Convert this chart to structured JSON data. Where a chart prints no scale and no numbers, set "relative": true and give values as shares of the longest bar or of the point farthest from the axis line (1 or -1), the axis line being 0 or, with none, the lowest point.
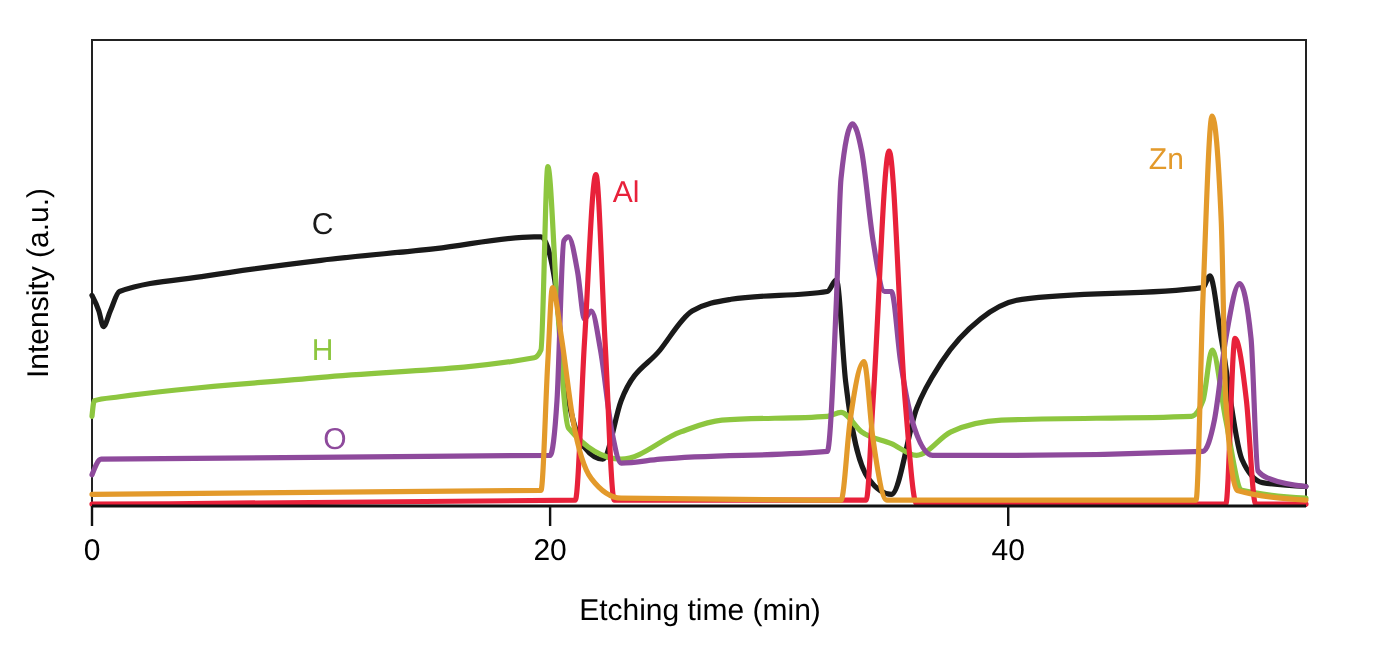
{
  "chart_data": {
    "type": "line",
    "relative": true,
    "xlabel": "Etching time (min)",
    "ylabel": "Intensity (a.u.)",
    "xlim": [
      0,
      53
    ],
    "xticks": [
      0,
      20,
      40
    ],
    "grid": false,
    "marker": "none",
    "line_style": "solid",
    "series": [
      {
        "name": "C",
        "color": "#1a1a1a",
        "x": [
          0,
          0.3,
          0.5,
          0.8,
          1.2,
          5,
          10,
          15,
          19.3,
          19.6,
          20.2,
          20.6,
          21.5,
          22.3,
          23.1,
          24.8,
          26.2,
          27.9,
          32.1,
          32.5,
          32.9,
          33.9,
          34.9,
          36,
          37.1,
          38.8,
          40.6,
          48.5,
          48.8,
          49.3,
          50.2,
          51.1,
          53
        ],
        "values": [
          0.54,
          0.5,
          0.46,
          0.5,
          0.55,
          0.59,
          0.63,
          0.66,
          0.69,
          0.69,
          0.58,
          0.35,
          0.15,
          0.12,
          0.27,
          0.4,
          0.5,
          0.53,
          0.55,
          0.58,
          0.32,
          0.07,
          0.03,
          0.25,
          0.37,
          0.48,
          0.53,
          0.56,
          0.59,
          0.43,
          0.12,
          0.06,
          0.05
        ]
      },
      {
        "name": "H",
        "color": "#8dc63f",
        "x": [
          0,
          0.1,
          1.2,
          10,
          19.3,
          19.6,
          19.9,
          20.3,
          20.8,
          23.1,
          25.7,
          27.5,
          32.1,
          32.7,
          33.6,
          34.9,
          36,
          37.5,
          39.7,
          48,
          48.5,
          48.9,
          49.5,
          50.2,
          53
        ],
        "values": [
          0.23,
          0.27,
          0.28,
          0.33,
          0.38,
          0.4,
          0.87,
          0.53,
          0.2,
          0.12,
          0.19,
          0.22,
          0.23,
          0.24,
          0.19,
          0.16,
          0.13,
          0.19,
          0.22,
          0.23,
          0.27,
          0.4,
          0.22,
          0.04,
          0.02
        ]
      },
      {
        "name": "O",
        "color": "#8e4a9c",
        "x": [
          0,
          0.4,
          20,
          20.3,
          20.6,
          20.8,
          21.2,
          21.5,
          21.8,
          22.2,
          22.7,
          23.1,
          24.8,
          32.1,
          32.5,
          32.7,
          33.2,
          33.6,
          34.1,
          34.6,
          34.9,
          35.3,
          35.8,
          36.7,
          40,
          48.5,
          49,
          49.5,
          50.1,
          50.6,
          50.9,
          51.4,
          53
        ],
        "values": [
          0.08,
          0.12,
          0.13,
          0.27,
          0.68,
          0.69,
          0.6,
          0.48,
          0.5,
          0.4,
          0.19,
          0.11,
          0.12,
          0.14,
          0.53,
          0.84,
          0.98,
          0.91,
          0.68,
          0.55,
          0.55,
          0.37,
          0.22,
          0.13,
          0.13,
          0.14,
          0.22,
          0.43,
          0.57,
          0.43,
          0.09,
          0.07,
          0.05
        ]
      },
      {
        "name": "Al",
        "color": "#e8213a",
        "x": [
          0,
          21.1,
          21.5,
          22,
          22.4,
          22.8,
          33.8,
          34.1,
          34.8,
          35.5,
          36,
          49.5,
          49.9,
          50.4,
          50.8,
          53
        ],
        "values": [
          0.005,
          0.015,
          0.42,
          0.85,
          0.42,
          0.015,
          0.015,
          0.27,
          0.91,
          0.27,
          0.005,
          0.005,
          0.43,
          0.27,
          0.005,
          0.005
        ]
      },
      {
        "name": "Zn",
        "color": "#e39a2b",
        "x": [
          0,
          19.6,
          19.9,
          20.1,
          20.5,
          21,
          21.8,
          23.1,
          32.7,
          33.1,
          33.7,
          34.1,
          34.7,
          48.2,
          48.5,
          48.9,
          49.3,
          49.5,
          50,
          53
        ],
        "values": [
          0.03,
          0.04,
          0.37,
          0.56,
          0.43,
          0.22,
          0.07,
          0.02,
          0.015,
          0.22,
          0.37,
          0.17,
          0.015,
          0.015,
          0.53,
          1,
          0.73,
          0.27,
          0.04,
          0.015
        ]
      }
    ]
  }
}
